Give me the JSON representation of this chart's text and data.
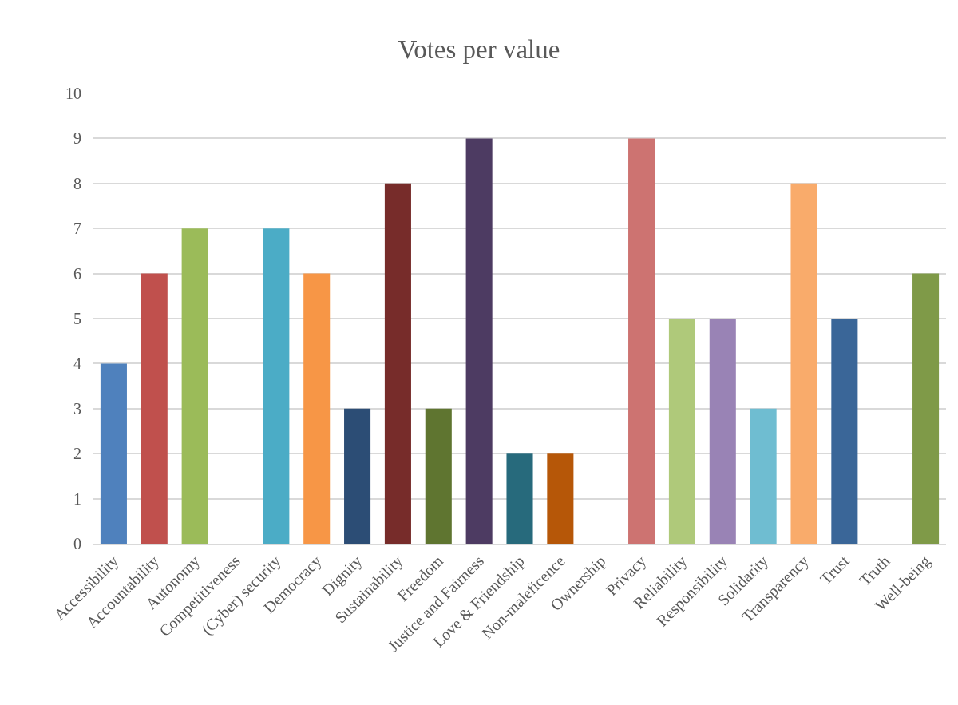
{
  "chart_data": {
    "type": "bar",
    "title": "Votes per value",
    "categories": [
      "Accessibility",
      "Accountability",
      "Autonomy",
      "Competitiveness",
      "(Cyber) security",
      "Democracy",
      "Dignity",
      "Sustainability",
      "Freedom",
      "Justice and Fairness",
      "Love & Friendship",
      "Non-maleficence",
      "Ownership",
      "Privacy",
      "Reliability",
      "Responsibility",
      "Solidarity",
      "Transparency",
      "Trust",
      "Truth",
      "Well-being"
    ],
    "values": [
      4,
      6,
      7,
      0,
      7,
      6,
      3,
      8,
      3,
      9,
      2,
      2,
      0,
      9,
      5,
      5,
      3,
      8,
      5,
      0,
      6
    ],
    "colors": [
      "#4f81bd",
      "#c0504d",
      "#9bbb59",
      "#8064a2",
      "#4bacc6",
      "#f79646",
      "#2c4d75",
      "#772c2a",
      "#5f7530",
      "#4d3b62",
      "#276a7c",
      "#b65708",
      "#729aca",
      "#cd7371",
      "#afc97a",
      "#9983b5",
      "#6fbdd1",
      "#f9ab6b",
      "#3a6698",
      "#9c3e3c",
      "#7f9a48"
    ],
    "ylim": [
      0,
      10
    ],
    "yticks": [
      0,
      1,
      2,
      3,
      4,
      5,
      6,
      7,
      8,
      9,
      10
    ],
    "grid": "y"
  }
}
